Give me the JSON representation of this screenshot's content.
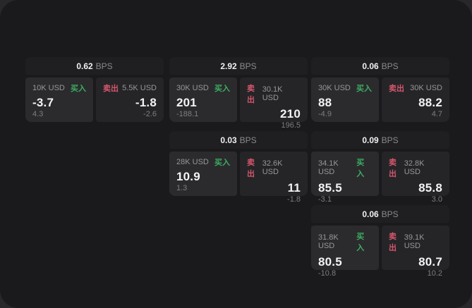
{
  "theme": {
    "background": "#1a1a1c",
    "outer_background": "#28282b",
    "header_surface": "#1f1f22",
    "buy_surface": "#2b2b2d",
    "sell_surface": "#252528",
    "buy_color": "#3cae63",
    "sell_color": "#d5566b"
  },
  "cards": [
    {
      "position": "row1-col1",
      "bps_value": "0.62",
      "bps_unit": "BPS",
      "buy": {
        "size": "10K USD",
        "action_label": "买入",
        "value": "-3.7",
        "change": "4.3"
      },
      "sell": {
        "action_label": "卖出",
        "size": "5.5K USD",
        "value": "-1.8",
        "change": "-2.6"
      }
    },
    {
      "position": "row1-col2",
      "bps_value": "2.92",
      "bps_unit": "BPS",
      "buy": {
        "size": "30K USD",
        "action_label": "买入",
        "value": "201",
        "change": "-188.1"
      },
      "sell": {
        "action_label": "卖出",
        "size": "30.1K USD",
        "value": "210",
        "change": "196.5"
      }
    },
    {
      "position": "row1-col3",
      "bps_value": "0.06",
      "bps_unit": "BPS",
      "buy": {
        "size": "30K USD",
        "action_label": "买入",
        "value": "88",
        "change": "-4.9"
      },
      "sell": {
        "action_label": "卖出",
        "size": "30K USD",
        "value": "88.2",
        "change": "4.7"
      }
    },
    {
      "position": "row2-col2",
      "bps_value": "0.03",
      "bps_unit": "BPS",
      "buy": {
        "size": "28K USD",
        "action_label": "买入",
        "value": "10.9",
        "change": "1.3"
      },
      "sell": {
        "action_label": "卖出",
        "size": "32.6K USD",
        "value": "11",
        "change": "-1.8"
      }
    },
    {
      "position": "row2-col3",
      "bps_value": "0.09",
      "bps_unit": "BPS",
      "buy": {
        "size": "34.1K USD",
        "action_label": "买入",
        "value": "85.5",
        "change": "-3.1"
      },
      "sell": {
        "action_label": "卖出",
        "size": "32.8K USD",
        "value": "85.8",
        "change": "3.0"
      }
    },
    {
      "position": "row3-col3",
      "bps_value": "0.06",
      "bps_unit": "BPS",
      "buy": {
        "size": "31.8K USD",
        "action_label": "买入",
        "value": "80.5",
        "change": "-10.8"
      },
      "sell": {
        "action_label": "卖出",
        "size": "39.1K USD",
        "value": "80.7",
        "change": "10.2"
      }
    }
  ]
}
